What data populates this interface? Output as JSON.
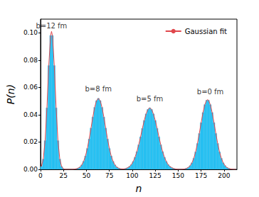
{
  "chart_data": {
    "type": "histogram",
    "x_label": "n",
    "y_label": "P(n)",
    "color": "#29c5f6",
    "bins": [
      0,
      2,
      4,
      6,
      8,
      10,
      12,
      14,
      16,
      18,
      20,
      22,
      24,
      26,
      28,
      30,
      32,
      34,
      36,
      38,
      40,
      42,
      44,
      46,
      48,
      50,
      52,
      54,
      56,
      58,
      60,
      62,
      64,
      66,
      68,
      70,
      72,
      74,
      76,
      78,
      80,
      82,
      84,
      86,
      88,
      90,
      92,
      94,
      96,
      98,
      100,
      102,
      104,
      106,
      108,
      110,
      112,
      114,
      116,
      118,
      120,
      122,
      124,
      126,
      128,
      130,
      132,
      134,
      136,
      138,
      140,
      142,
      144,
      146,
      148,
      150,
      152,
      154,
      156,
      158,
      160,
      162,
      164,
      166,
      168,
      170,
      172,
      174,
      176,
      178,
      180,
      182,
      184,
      186,
      188,
      190,
      192,
      194,
      196,
      198,
      200,
      202,
      204,
      206,
      208,
      210,
      212,
      214
    ],
    "values": [
      0.0021,
      0.0075,
      0.021,
      0.045,
      0.076,
      0.098,
      0.098,
      0.076,
      0.045,
      0.021,
      0.0075,
      0.0021,
      0.0004,
      0,
      0,
      0,
      0,
      0,
      0.0002,
      0.0004,
      0.0009,
      0.0017,
      0.0033,
      0.0059,
      0.0098,
      0.0153,
      0.0222,
      0.0302,
      0.0383,
      0.0454,
      0.0503,
      0.052,
      0.0503,
      0.0454,
      0.0383,
      0.0302,
      0.0222,
      0.0153,
      0.0098,
      0.0059,
      0.0033,
      0.0017,
      0.0009,
      0.0004,
      0.0003,
      0.0003,
      0.0006,
      0.0012,
      0.0021,
      0.0035,
      0.0058,
      0.0089,
      0.013,
      0.018,
      0.0238,
      0.03,
      0.0358,
      0.0406,
      0.0439,
      0.045,
      0.0439,
      0.0406,
      0.0358,
      0.03,
      0.0238,
      0.018,
      0.013,
      0.0089,
      0.0058,
      0.0035,
      0.0021,
      0.0012,
      0.0006,
      0.0003,
      0.0001,
      0,
      0,
      0.0001,
      0.0003,
      0.0007,
      0.0014,
      0.0027,
      0.0048,
      0.0081,
      0.0128,
      0.019,
      0.0263,
      0.0342,
      0.0416,
      0.0474,
      0.0506,
      0.0506,
      0.0474,
      0.0416,
      0.0342,
      0.0263,
      0.019,
      0.0128,
      0.0081,
      0.0048,
      0.0027,
      0.0014,
      0.0007,
      0.0003,
      0.0001,
      0,
      0
    ],
    "series": [
      {
        "name": "Gaussian fit",
        "type": "line",
        "color": "#e0474c",
        "x": [
          1,
          3,
          5,
          7,
          9,
          11,
          12,
          13,
          15,
          17,
          19,
          21,
          23,
          25,
          27,
          29,
          31,
          33,
          35,
          37,
          39,
          41,
          43,
          45,
          47,
          49,
          51,
          53,
          55,
          57,
          59,
          61,
          63,
          65,
          67,
          69,
          71,
          73,
          75,
          77,
          79,
          81,
          83,
          85,
          87,
          89,
          91,
          93,
          95,
          97,
          99,
          101,
          103,
          105,
          107,
          109,
          111,
          113,
          115,
          117,
          119,
          121,
          123,
          125,
          127,
          129,
          131,
          133,
          135,
          137,
          139,
          141,
          143,
          145,
          147,
          149,
          151,
          153,
          155,
          157,
          159,
          161,
          163,
          165,
          167,
          169,
          171,
          173,
          175,
          177,
          179,
          181,
          182,
          183,
          185,
          187,
          189,
          191,
          193,
          195,
          197,
          199,
          201,
          203,
          205,
          207,
          209,
          211,
          213
        ],
        "values": [
          0.0021,
          0.0075,
          0.021,
          0.045,
          0.076,
          0.098,
          0.101,
          0.098,
          0.076,
          0.045,
          0.021,
          0.0075,
          0.0021,
          0.0004,
          0,
          0,
          0,
          0,
          0,
          0.0002,
          0.0004,
          0.0009,
          0.0017,
          0.0033,
          0.0059,
          0.0098,
          0.0153,
          0.0222,
          0.0302,
          0.0383,
          0.0454,
          0.0503,
          0.052,
          0.0503,
          0.0454,
          0.0383,
          0.0302,
          0.0222,
          0.0153,
          0.0098,
          0.0059,
          0.0033,
          0.0017,
          0.0009,
          0.0004,
          0.0003,
          0.0003,
          0.0006,
          0.0012,
          0.0021,
          0.0035,
          0.0058,
          0.0089,
          0.013,
          0.018,
          0.0238,
          0.03,
          0.0358,
          0.0406,
          0.0439,
          0.045,
          0.0439,
          0.0406,
          0.0358,
          0.03,
          0.0238,
          0.018,
          0.013,
          0.0089,
          0.0058,
          0.0035,
          0.0021,
          0.0012,
          0.0006,
          0.0003,
          0.0001,
          0,
          0,
          0.0001,
          0.0003,
          0.0007,
          0.0014,
          0.0027,
          0.0048,
          0.0081,
          0.0128,
          0.019,
          0.0263,
          0.0342,
          0.0416,
          0.0474,
          0.0506,
          0.051,
          0.0506,
          0.0474,
          0.0416,
          0.0342,
          0.0263,
          0.019,
          0.0128,
          0.0081,
          0.0048,
          0.0027,
          0.0014,
          0.0007,
          0.0003,
          0.0001,
          0,
          0
        ]
      }
    ],
    "annotations": [
      {
        "text": "b=12 fm",
        "x": 12,
        "y": 0.105
      },
      {
        "text": "b=8 fm",
        "x": 63,
        "y": 0.059
      },
      {
        "text": "b=5 fm",
        "x": 119,
        "y": 0.0515
      },
      {
        "text": "b=0 fm",
        "x": 185,
        "y": 0.0566
      }
    ],
    "xlim": [
      0,
      214
    ],
    "xticks": [
      0,
      25,
      50,
      75,
      100,
      125,
      150,
      175,
      200
    ],
    "ylim": [
      0,
      0.11
    ],
    "yticks": [
      {
        "value": 0,
        "label": "0.00"
      },
      {
        "value": 0.02,
        "label": "0.02"
      },
      {
        "value": 0.04,
        "label": "0.04"
      },
      {
        "value": 0.06,
        "label": "0.06"
      },
      {
        "value": 0.08,
        "label": "0.08"
      },
      {
        "value": 0.1,
        "label": "0.10"
      }
    ],
    "legend": "upper right",
    "grid": false
  }
}
